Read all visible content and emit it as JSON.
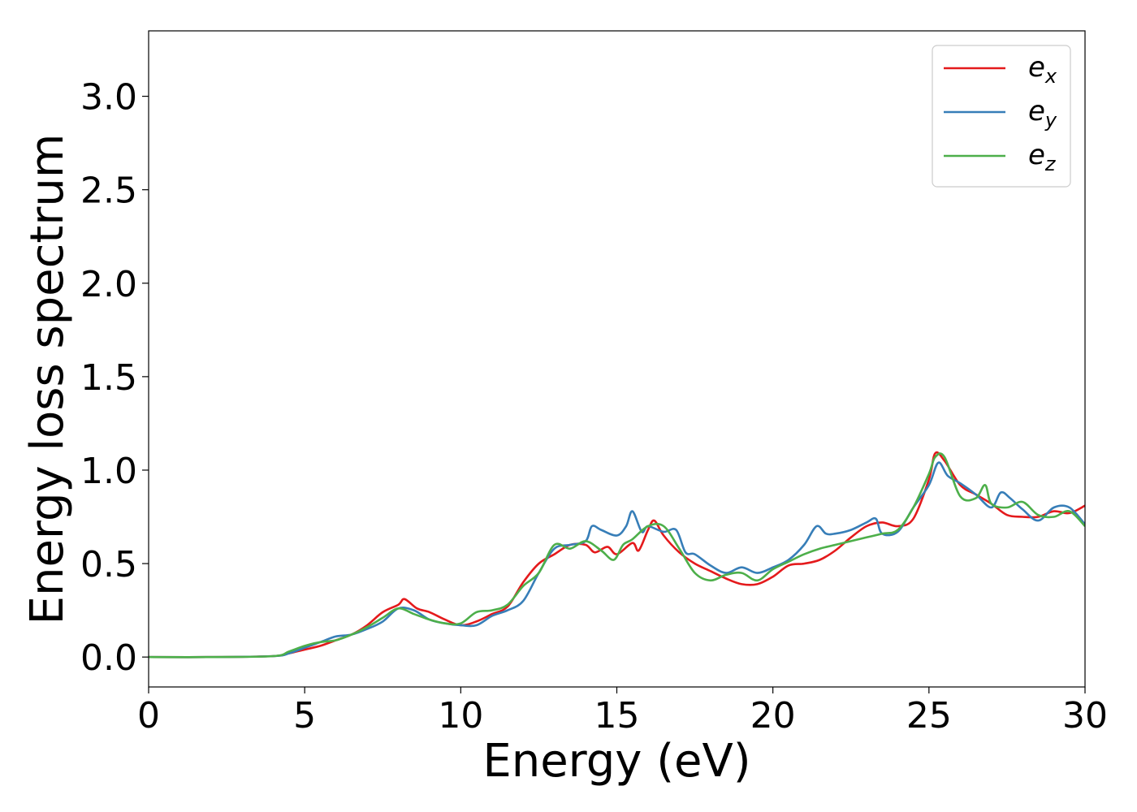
{
  "chart_data": {
    "type": "line",
    "xlabel": "Energy (eV)",
    "ylabel": "Energy loss spectrum",
    "xlim": [
      0,
      30
    ],
    "ylim": [
      -0.16,
      3.35
    ],
    "xticks": [
      0,
      5,
      10,
      15,
      20,
      25,
      30
    ],
    "yticks": [
      0.0,
      0.5,
      1.0,
      1.5,
      2.0,
      2.5,
      3.0
    ],
    "xtick_labels": [
      "0",
      "5",
      "10",
      "15",
      "20",
      "25",
      "30"
    ],
    "ytick_labels": [
      "0.0",
      "0.5",
      "1.0",
      "1.5",
      "2.0",
      "2.5",
      "3.0"
    ],
    "grid": false,
    "legend_position": "top-right",
    "series": [
      {
        "name": "e",
        "subscript": "x",
        "color": "#e41a1c",
        "x": [
          0,
          2,
          4,
          4.5,
          5,
          5.5,
          6,
          6.5,
          7,
          7.5,
          8,
          8.2,
          8.6,
          9,
          9.5,
          10,
          10.5,
          11,
          11.5,
          12,
          12.5,
          13,
          13.5,
          14,
          14.3,
          14.7,
          15,
          15.5,
          15.7,
          16,
          16.2,
          16.5,
          17,
          17.5,
          18,
          18.5,
          19,
          19.5,
          20,
          20.5,
          21,
          21.5,
          22,
          22.5,
          23,
          23.5,
          24,
          24.5,
          25,
          25.2,
          25.5,
          26,
          26.5,
          27,
          27.5,
          28,
          28.5,
          29,
          29.5,
          30
        ],
        "y": [
          0.0,
          0.0,
          0.005,
          0.02,
          0.04,
          0.06,
          0.09,
          0.12,
          0.17,
          0.24,
          0.28,
          0.31,
          0.26,
          0.24,
          0.2,
          0.17,
          0.19,
          0.23,
          0.27,
          0.4,
          0.5,
          0.55,
          0.6,
          0.6,
          0.56,
          0.59,
          0.55,
          0.61,
          0.57,
          0.68,
          0.73,
          0.65,
          0.56,
          0.5,
          0.46,
          0.42,
          0.39,
          0.39,
          0.43,
          0.49,
          0.5,
          0.52,
          0.57,
          0.64,
          0.7,
          0.72,
          0.7,
          0.74,
          0.95,
          1.09,
          1.05,
          0.92,
          0.87,
          0.82,
          0.76,
          0.75,
          0.75,
          0.78,
          0.77,
          0.81
        ]
      },
      {
        "name": "e",
        "subscript": "y",
        "color": "#377eb8",
        "x": [
          0,
          2,
          4,
          4.5,
          5,
          5.5,
          6,
          6.5,
          7,
          7.5,
          8,
          8.5,
          9,
          9.5,
          10,
          10.5,
          11,
          11.5,
          12,
          12.5,
          13,
          13.5,
          14,
          14.2,
          14.5,
          15,
          15.3,
          15.5,
          15.8,
          16,
          16.5,
          16.9,
          17.2,
          17.5,
          18,
          18.5,
          19,
          19.5,
          20,
          20.5,
          21,
          21.4,
          21.7,
          22,
          22.5,
          23,
          23.3,
          23.5,
          24,
          24.5,
          25,
          25.3,
          25.6,
          26,
          26.5,
          27,
          27.3,
          27.6,
          28,
          28.5,
          29,
          29.5,
          30
        ],
        "y": [
          0.0,
          0.0,
          0.005,
          0.02,
          0.05,
          0.08,
          0.11,
          0.12,
          0.15,
          0.19,
          0.26,
          0.25,
          0.2,
          0.18,
          0.17,
          0.17,
          0.22,
          0.25,
          0.3,
          0.45,
          0.58,
          0.6,
          0.62,
          0.7,
          0.68,
          0.65,
          0.7,
          0.78,
          0.67,
          0.7,
          0.67,
          0.68,
          0.56,
          0.55,
          0.49,
          0.45,
          0.48,
          0.45,
          0.48,
          0.52,
          0.6,
          0.7,
          0.66,
          0.66,
          0.68,
          0.72,
          0.74,
          0.66,
          0.67,
          0.8,
          0.92,
          1.04,
          0.97,
          0.93,
          0.87,
          0.8,
          0.88,
          0.85,
          0.79,
          0.73,
          0.8,
          0.8,
          0.71
        ]
      },
      {
        "name": "e",
        "subscript": "z",
        "color": "#4daf4a",
        "x": [
          0,
          2,
          4,
          4.5,
          5,
          5.5,
          6,
          6.5,
          7,
          7.5,
          8,
          8.5,
          9,
          9.5,
          10,
          10.5,
          11,
          11.5,
          12,
          12.5,
          13,
          13.5,
          14,
          14.5,
          14.9,
          15.2,
          15.5,
          16,
          16.5,
          17,
          17.5,
          18,
          18.5,
          19,
          19.5,
          20,
          20.5,
          21,
          21.5,
          22,
          22.5,
          23,
          23.5,
          24,
          24.5,
          25,
          25.2,
          25.5,
          26,
          26.5,
          26.8,
          27,
          27.5,
          28,
          28.5,
          29,
          29.5,
          30
        ],
        "y": [
          0.0,
          0.0,
          0.005,
          0.03,
          0.06,
          0.08,
          0.09,
          0.12,
          0.16,
          0.21,
          0.26,
          0.23,
          0.2,
          0.18,
          0.18,
          0.24,
          0.25,
          0.28,
          0.38,
          0.45,
          0.6,
          0.58,
          0.62,
          0.57,
          0.52,
          0.6,
          0.63,
          0.7,
          0.7,
          0.58,
          0.45,
          0.41,
          0.44,
          0.45,
          0.41,
          0.47,
          0.51,
          0.55,
          0.58,
          0.6,
          0.62,
          0.64,
          0.66,
          0.68,
          0.8,
          0.98,
          1.07,
          1.07,
          0.86,
          0.85,
          0.92,
          0.82,
          0.8,
          0.83,
          0.76,
          0.75,
          0.78,
          0.7
        ]
      }
    ]
  }
}
